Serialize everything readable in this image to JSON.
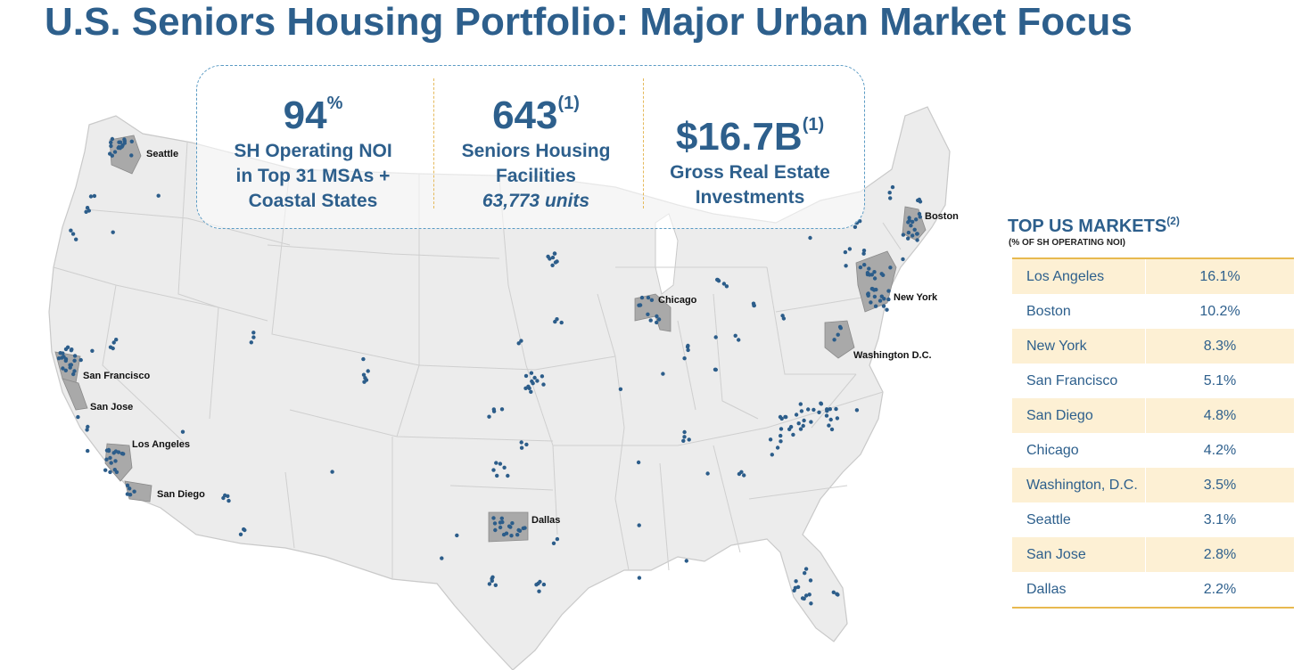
{
  "title": "U.S. Seniors Housing Portfolio: Major Urban Market Focus",
  "stats": [
    {
      "value": "94",
      "suffix": "%",
      "label_lines": [
        "SH Operating NOI",
        "in Top 31 MSAs +",
        "Coastal States"
      ],
      "italic": ""
    },
    {
      "value": "643",
      "suffix": "(1)",
      "label_lines": [
        "Seniors Housing",
        "Facilities"
      ],
      "italic": "63,773 units"
    },
    {
      "value": "$16.7B",
      "suffix": "(1)",
      "label_lines": [
        "Gross Real Estate",
        "Investments"
      ],
      "italic": ""
    }
  ],
  "map": {
    "city_labels": [
      "Seattle",
      "San Francisco",
      "San Jose",
      "Los Angeles",
      "San Diego",
      "Dallas",
      "Chicago",
      "Boston",
      "New York",
      "Washington D.C."
    ],
    "colors": {
      "land": "#ececec",
      "border": "#c9c9c9",
      "metro": "#a9a9a9",
      "dot": "#2c5d8a"
    }
  },
  "markets": {
    "title": "TOP US MARKETS",
    "title_sup": "(2)",
    "subtitle": "(% OF SH OPERATING NOI)",
    "rows": [
      {
        "name": "Los Angeles",
        "pct": "16.1%"
      },
      {
        "name": "Boston",
        "pct": "10.2%"
      },
      {
        "name": "New York",
        "pct": "8.3%"
      },
      {
        "name": "San Francisco",
        "pct": "5.1%"
      },
      {
        "name": "San Diego",
        "pct": "4.8%"
      },
      {
        "name": "Chicago",
        "pct": "4.2%"
      },
      {
        "name": "Washington, D.C.",
        "pct": "3.5%"
      },
      {
        "name": "Seattle",
        "pct": "3.1%"
      },
      {
        "name": "San Jose",
        "pct": "2.8%"
      },
      {
        "name": "Dallas",
        "pct": "2.2%"
      }
    ]
  },
  "colors": {
    "brand": "#2d5f8c",
    "accent": "#e8b94f",
    "row_fill": "#fdf0d4"
  }
}
